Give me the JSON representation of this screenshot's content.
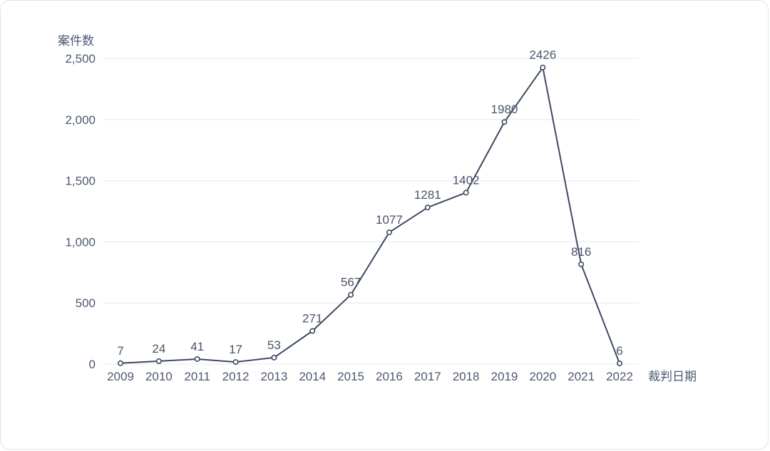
{
  "chart_data": {
    "type": "line",
    "title": "",
    "y_axis_title": "案件数",
    "x_axis_title": "裁判日期",
    "categories": [
      "2009",
      "2010",
      "2011",
      "2012",
      "2013",
      "2014",
      "2015",
      "2016",
      "2017",
      "2018",
      "2019",
      "2020",
      "2021",
      "2022"
    ],
    "series": [
      {
        "name": "案件数",
        "values": [
          7,
          24,
          41,
          17,
          53,
          271,
          567,
          1077,
          1281,
          1402,
          1980,
          2426,
          816,
          6
        ]
      }
    ],
    "point_labels": [
      "7",
      "24",
      "41",
      "17",
      "53",
      "271",
      "567",
      "1077",
      "1281",
      "1402",
      "1980",
      "2426",
      "816",
      "6"
    ],
    "ylim": [
      0,
      2500
    ],
    "yticks": [
      0,
      500,
      1000,
      1500,
      2000,
      2500
    ],
    "ytick_labels": [
      "0",
      "500",
      "1,000",
      "1,500",
      "2,000",
      "2,500"
    ],
    "grid": "horizontal",
    "legend_position": "none",
    "marker_style": "open-circle",
    "colors": {
      "line": "#3d4a63",
      "marker_fill": "#ffffff",
      "marker_stroke": "#3d4a63",
      "gridline": "#edeff4",
      "tick_text": "#4d5871",
      "point_label_text": "#49536b",
      "axis_title_text": "#4d5871",
      "card_border": "#e3e4e8",
      "background": "#ffffff"
    }
  }
}
